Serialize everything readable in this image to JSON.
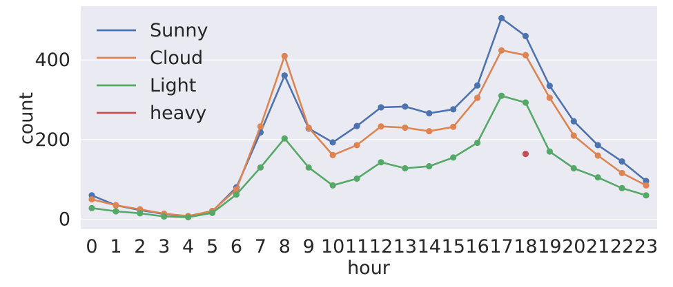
{
  "chart_data": {
    "type": "line",
    "title": "",
    "xlabel": "hour",
    "ylabel": "count",
    "x": [
      0,
      1,
      2,
      3,
      4,
      5,
      6,
      7,
      8,
      9,
      10,
      11,
      12,
      13,
      14,
      15,
      16,
      17,
      18,
      19,
      20,
      21,
      22,
      23
    ],
    "xticks": [
      "0",
      "1",
      "2",
      "3",
      "4",
      "5",
      "6",
      "7",
      "8",
      "9",
      "10",
      "11",
      "12",
      "13",
      "14",
      "15",
      "16",
      "17",
      "18",
      "19",
      "20",
      "21",
      "22",
      "23"
    ],
    "ylim": [
      -25,
      535
    ],
    "yticks": [
      0,
      200,
      400
    ],
    "ytick_labels": [
      "0",
      "200",
      "400"
    ],
    "grid": true,
    "legend_position": "top-left",
    "series": [
      {
        "name": "Sunny",
        "color": "#4c72b0",
        "values": [
          60,
          35,
          23,
          13,
          7,
          20,
          80,
          218,
          361,
          228,
          193,
          234,
          281,
          283,
          266,
          276,
          336,
          505,
          460,
          335,
          246,
          186,
          145,
          96
        ]
      },
      {
        "name": "Cloud",
        "color": "#dd8452",
        "values": [
          50,
          35,
          25,
          14,
          8,
          21,
          75,
          233,
          410,
          230,
          161,
          186,
          233,
          230,
          221,
          232,
          305,
          424,
          412,
          305,
          210,
          160,
          116,
          85
        ]
      },
      {
        "name": "Light",
        "color": "#55a868",
        "values": [
          28,
          20,
          15,
          7,
          5,
          16,
          62,
          130,
          203,
          130,
          85,
          102,
          143,
          128,
          133,
          155,
          192,
          310,
          293,
          170,
          128,
          105,
          78,
          60
        ]
      },
      {
        "name": "heavy",
        "color": "#c44e52",
        "values": [
          null,
          null,
          null,
          null,
          null,
          null,
          null,
          null,
          null,
          null,
          null,
          null,
          null,
          null,
          null,
          null,
          null,
          null,
          164,
          null,
          null,
          null,
          null,
          null
        ]
      }
    ]
  }
}
